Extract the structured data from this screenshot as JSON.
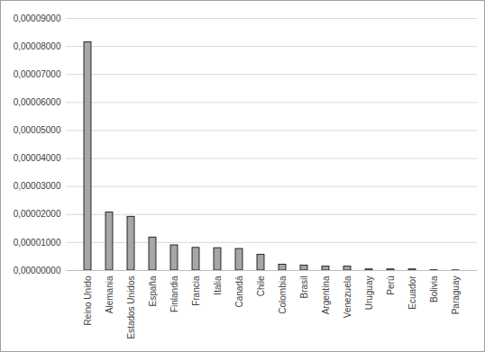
{
  "chart_data": {
    "type": "bar",
    "categories": [
      "Reino Unido",
      "Alemania",
      "Estados Unidos",
      "España",
      "Finlandia",
      "Francia",
      "Italia",
      "Canadá",
      "Chile",
      "Colombia",
      "Brasil",
      "Argentina",
      "Venezuela",
      "Uruguay",
      "Perú",
      "Ecuador",
      "Bolivia",
      "Paraguay"
    ],
    "values": [
      8.15e-05,
      2.07e-05,
      1.92e-05,
      1.18e-05,
      9e-06,
      8.1e-06,
      8e-06,
      7.7e-06,
      5.6e-06,
      2.1e-06,
      1.8e-06,
      1.4e-06,
      1.4e-06,
      4e-07,
      4e-07,
      4e-07,
      1e-07,
      5e-08
    ],
    "color": "#a6a6a6",
    "ylim": [
      0,
      9e-05
    ],
    "yticks": [
      {
        "value": 0,
        "label": "0,00000000"
      },
      {
        "value": 1e-05,
        "label": "0,00001000"
      },
      {
        "value": 2e-05,
        "label": "0,00002000"
      },
      {
        "value": 3e-05,
        "label": "0,00003000"
      },
      {
        "value": 4e-05,
        "label": "0,00004000"
      },
      {
        "value": 5e-05,
        "label": "0,00005000"
      },
      {
        "value": 6e-05,
        "label": "0,00006000"
      },
      {
        "value": 7e-05,
        "label": "0,00007000"
      },
      {
        "value": 8e-05,
        "label": "0,00008000"
      },
      {
        "value": 9e-05,
        "label": "0,00009000"
      }
    ],
    "grid": true
  }
}
